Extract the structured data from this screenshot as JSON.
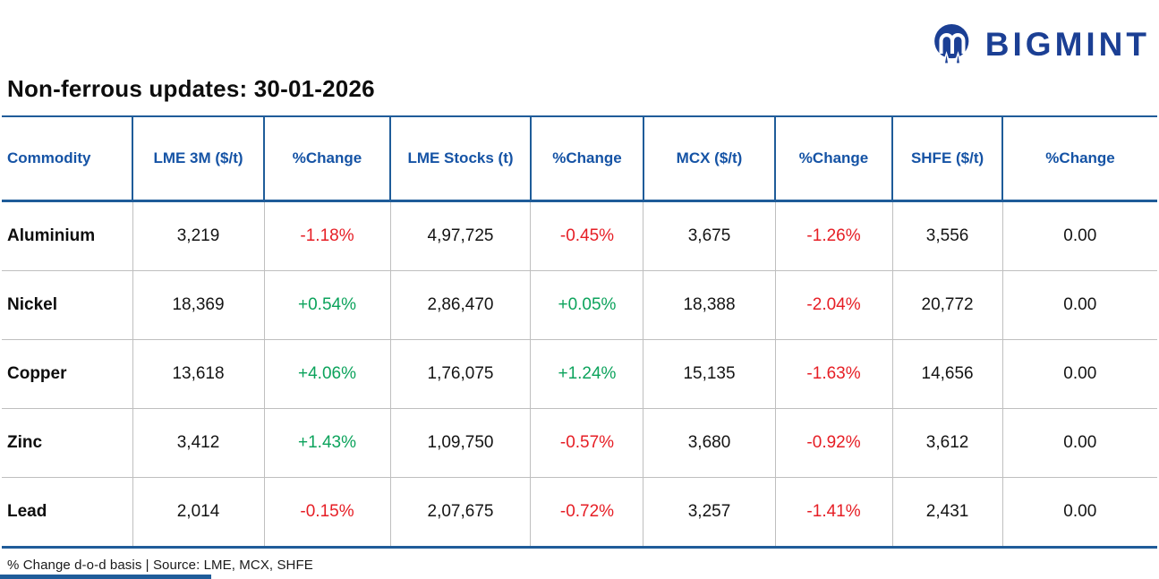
{
  "brand": {
    "name": "BIGMINT",
    "logo_icon": "bigmint-logo-icon",
    "logo_color": "#1B3F94"
  },
  "title": "Non-ferrous updates: 30-01-2026",
  "footer": "% Change d-o-d basis | Source: LME, MCX, SHFE",
  "colors": {
    "header_text_blue": "#1553A5",
    "table_border_blue": "#1F5C99",
    "body_divider_gray": "#BFBFBF",
    "negative_red": "#E61E25",
    "positive_green": "#0CA35C"
  },
  "table": {
    "columns": [
      "Commodity",
      "LME 3M ($/t)",
      "%Change",
      "LME Stocks (t)",
      "%Change",
      "MCX ($/t)",
      "%Change",
      "SHFE ($/t)",
      "%Change"
    ],
    "column_widths_pct": [
      11.31,
      11.39,
      10.92,
      12.16,
      9.76,
      11.39,
      10.15,
      9.53,
      13.39
    ],
    "rows": [
      {
        "commodity": "Aluminium",
        "lme_3m": "3,219",
        "lme_3m_change": "-1.18%",
        "lme_stocks": "4,97,725",
        "lme_stocks_change": "-0.45%",
        "mcx": "3,675",
        "mcx_change": "-1.26%",
        "shfe": "3,556",
        "shfe_change": "0.00"
      },
      {
        "commodity": "Nickel",
        "lme_3m": "18,369",
        "lme_3m_change": "+0.54%",
        "lme_stocks": "2,86,470",
        "lme_stocks_change": "+0.05%",
        "mcx": "18,388",
        "mcx_change": "-2.04%",
        "shfe": "20,772",
        "shfe_change": "0.00"
      },
      {
        "commodity": "Copper",
        "lme_3m": "13,618",
        "lme_3m_change": "+4.06%",
        "lme_stocks": "1,76,075",
        "lme_stocks_change": "+1.24%",
        "mcx": "15,135",
        "mcx_change": "-1.63%",
        "shfe": "14,656",
        "shfe_change": "0.00"
      },
      {
        "commodity": "Zinc",
        "lme_3m": "3,412",
        "lme_3m_change": "+1.43%",
        "lme_stocks": "1,09,750",
        "lme_stocks_change": "-0.57%",
        "mcx": "3,680",
        "mcx_change": "-0.92%",
        "shfe": "3,612",
        "shfe_change": "0.00"
      },
      {
        "commodity": "Lead",
        "lme_3m": "2,014",
        "lme_3m_change": "-0.15%",
        "lme_stocks": "2,07,675",
        "lme_stocks_change": "-0.72%",
        "mcx": "3,257",
        "mcx_change": "-1.41%",
        "shfe": "2,431",
        "shfe_change": "0.00"
      }
    ],
    "row_keys": [
      "commodity",
      "lme_3m",
      "lme_3m_change",
      "lme_stocks",
      "lme_stocks_change",
      "mcx",
      "mcx_change",
      "shfe",
      "shfe_change"
    ]
  },
  "chart_data": {
    "type": "table",
    "title": "Non-ferrous updates: 30-01-2026",
    "columns": [
      "Commodity",
      "LME 3M ($/t)",
      "%Change",
      "LME Stocks (t)",
      "%Change",
      "MCX ($/t)",
      "%Change",
      "SHFE ($/t)",
      "%Change"
    ],
    "rows": [
      [
        "Aluminium",
        "3,219",
        "-1.18%",
        "4,97,725",
        "-0.45%",
        "3,675",
        "-1.26%",
        "3,556",
        "0.00"
      ],
      [
        "Nickel",
        "18,369",
        "+0.54%",
        "2,86,470",
        "+0.05%",
        "18,388",
        "-2.04%",
        "20,772",
        "0.00"
      ],
      [
        "Copper",
        "13,618",
        "+4.06%",
        "1,76,075",
        "+1.24%",
        "15,135",
        "-1.63%",
        "14,656",
        "0.00"
      ],
      [
        "Zinc",
        "3,412",
        "+1.43%",
        "1,09,750",
        "-0.57%",
        "3,680",
        "-0.92%",
        "3,612",
        "0.00"
      ],
      [
        "Lead",
        "2,014",
        "-0.15%",
        "2,07,675",
        "-0.72%",
        "3,257",
        "-1.41%",
        "2,431",
        "0.00"
      ]
    ],
    "notes": "% Change d-o-d basis | Source: LME, MCX, SHFE; negative values red, positive values green"
  }
}
